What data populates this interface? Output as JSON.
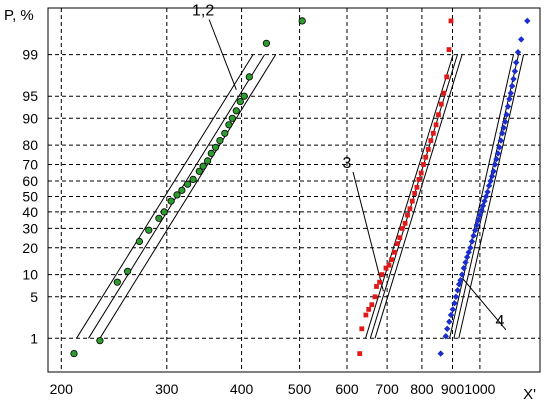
{
  "chart_data": {
    "type": "scatter",
    "title": "",
    "xlabel": "X'",
    "ylabel": "P, %",
    "x_scale": "log",
    "y_scale": "normal-probability",
    "xlim": [
      190,
      1260
    ],
    "ylim": [
      0.2,
      99.9
    ],
    "grid": true,
    "x_ticks": [
      200,
      300,
      400,
      500,
      600,
      700,
      800,
      900,
      1000
    ],
    "x_tick_labels": [
      "200",
      "300",
      "400",
      "500",
      "600",
      "700",
      "800",
      "900",
      "1000"
    ],
    "y_ticks": [
      1,
      5,
      10,
      20,
      30,
      40,
      50,
      60,
      70,
      80,
      90,
      95,
      99
    ],
    "y_tick_labels": [
      "1",
      "5",
      "10",
      "20",
      "30",
      "40",
      "50",
      "60",
      "70",
      "80",
      "90",
      "95",
      "99"
    ],
    "series": [
      {
        "marker": "circle",
        "color": "#2e9b2e",
        "points": [
          [
            210,
            0.5
          ],
          [
            232,
            0.9
          ],
          [
            248,
            8
          ],
          [
            258,
            11
          ],
          [
            270,
            23
          ],
          [
            280,
            29
          ],
          [
            291,
            36
          ],
          [
            297,
            40
          ],
          [
            305,
            47
          ],
          [
            312,
            51
          ],
          [
            318,
            54
          ],
          [
            325,
            58
          ],
          [
            332,
            61
          ],
          [
            340,
            66
          ],
          [
            345,
            69
          ],
          [
            351,
            72
          ],
          [
            356,
            76
          ],
          [
            362,
            79
          ],
          [
            368,
            82
          ],
          [
            375,
            85
          ],
          [
            381,
            88
          ],
          [
            386,
            90
          ],
          [
            392,
            92
          ],
          [
            398,
            94
          ],
          [
            404,
            95
          ],
          [
            412,
            97.5
          ],
          [
            440,
            99.4
          ],
          [
            505,
            99.8
          ]
        ]
      },
      {
        "marker": "square",
        "color": "#e01a1a",
        "points": [
          [
            630,
            0.5
          ],
          [
            635,
            1.5
          ],
          [
            645,
            2.6
          ],
          [
            652,
            3.2
          ],
          [
            660,
            3.8
          ],
          [
            668,
            5
          ],
          [
            672,
            7
          ],
          [
            680,
            8
          ],
          [
            686,
            10
          ],
          [
            697,
            12
          ],
          [
            705,
            13
          ],
          [
            712,
            15
          ],
          [
            720,
            18
          ],
          [
            728,
            22
          ],
          [
            735,
            25
          ],
          [
            742,
            30
          ],
          [
            750,
            33
          ],
          [
            757,
            38
          ],
          [
            764,
            42
          ],
          [
            771,
            47
          ],
          [
            778,
            52
          ],
          [
            785,
            56
          ],
          [
            791,
            61
          ],
          [
            798,
            65
          ],
          [
            805,
            70
          ],
          [
            812,
            74
          ],
          [
            820,
            78
          ],
          [
            828,
            82
          ],
          [
            836,
            85
          ],
          [
            845,
            88
          ],
          [
            853,
            91
          ],
          [
            862,
            93.5
          ],
          [
            870,
            95.5
          ],
          [
            880,
            97.5
          ],
          [
            888,
            99.2
          ],
          [
            895,
            99.8
          ]
        ]
      },
      {
        "marker": "diamond",
        "color": "#1a2ecc",
        "points": [
          [
            860,
            0.5
          ],
          [
            877,
            1.1
          ],
          [
            882,
            1.5
          ],
          [
            889,
            2
          ],
          [
            895,
            2.6
          ],
          [
            901,
            3.2
          ],
          [
            907,
            4
          ],
          [
            912,
            5
          ],
          [
            918,
            6.2
          ],
          [
            923,
            7.5
          ],
          [
            928,
            8.5
          ],
          [
            934,
            10
          ],
          [
            940,
            12
          ],
          [
            946,
            14
          ],
          [
            952,
            16
          ],
          [
            958,
            18
          ],
          [
            964,
            20
          ],
          [
            970,
            23
          ],
          [
            976,
            26
          ],
          [
            982,
            29
          ],
          [
            988,
            32
          ],
          [
            994,
            35
          ],
          [
            1000,
            38
          ],
          [
            1006,
            41
          ],
          [
            1012,
            44
          ],
          [
            1018,
            47
          ],
          [
            1024,
            50
          ],
          [
            1030,
            53
          ],
          [
            1036,
            57
          ],
          [
            1042,
            60
          ],
          [
            1048,
            63
          ],
          [
            1054,
            66
          ],
          [
            1060,
            70
          ],
          [
            1066,
            73
          ],
          [
            1072,
            76
          ],
          [
            1078,
            79
          ],
          [
            1084,
            82
          ],
          [
            1090,
            85
          ],
          [
            1096,
            87
          ],
          [
            1102,
            89
          ],
          [
            1108,
            91
          ],
          [
            1114,
            93
          ],
          [
            1120,
            94.5
          ],
          [
            1126,
            95.5
          ],
          [
            1132,
            96.5
          ],
          [
            1138,
            97.3
          ],
          [
            1144,
            98
          ],
          [
            1150,
            98.6
          ],
          [
            1158,
            99.1
          ],
          [
            1172,
            99.5
          ],
          [
            1200,
            99.8
          ]
        ]
      }
    ],
    "fit_lines": [
      {
        "group": "1,2",
        "from": [
          212,
          1
        ],
        "to": [
          418,
          99
        ]
      },
      {
        "group": "1,2",
        "from": [
          222,
          1
        ],
        "to": [
          437,
          99
        ]
      },
      {
        "group": "1,2",
        "from": [
          232,
          1
        ],
        "to": [
          456,
          99
        ]
      },
      {
        "group": "3",
        "from": [
          644,
          1
        ],
        "to": [
          902,
          99
        ]
      },
      {
        "group": "3",
        "from": [
          656,
          1
        ],
        "to": [
          917,
          99
        ]
      },
      {
        "group": "3",
        "from": [
          668,
          1
        ],
        "to": [
          934,
          99
        ]
      },
      {
        "group": "4",
        "from": [
          890,
          1
        ],
        "to": [
          1138,
          99
        ]
      },
      {
        "group": "4",
        "from": [
          905,
          1
        ],
        "to": [
          1160,
          99
        ]
      },
      {
        "group": "4",
        "from": [
          922,
          1
        ],
        "to": [
          1183,
          99
        ]
      }
    ],
    "annotations": [
      {
        "text": "1,2",
        "anchor": [
          345,
          99.85
        ],
        "target": [
          392,
          96
        ]
      },
      {
        "text": "3",
        "anchor": [
          600,
          68
        ],
        "target": [
          690,
          6
        ]
      },
      {
        "text": "4",
        "anchor": [
          1080,
          1.7
        ],
        "target": [
          935,
          9
        ]
      }
    ]
  }
}
